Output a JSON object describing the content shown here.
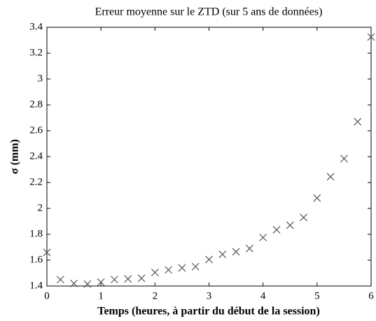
{
  "chart_data": {
    "type": "scatter",
    "title": "Erreur moyenne sur le ZTD (sur 5 ans de données)",
    "xlabel": "Temps (heures, à partir du début de la session)",
    "ylabel": "σ (mm)",
    "x": [
      0,
      0.25,
      0.5,
      0.75,
      1,
      1.25,
      1.5,
      1.75,
      2,
      2.25,
      2.5,
      2.75,
      3,
      3.25,
      3.5,
      3.75,
      4,
      4.25,
      4.5,
      4.75,
      5,
      5.25,
      5.5,
      5.75,
      6
    ],
    "values": [
      1.66,
      1.45,
      1.42,
      1.415,
      1.43,
      1.45,
      1.455,
      1.46,
      1.505,
      1.525,
      1.54,
      1.55,
      1.605,
      1.645,
      1.665,
      1.69,
      1.775,
      1.835,
      1.87,
      1.93,
      2.08,
      2.245,
      2.385,
      2.67,
      3.325
    ],
    "color": "#555555",
    "xlim": [
      0,
      6
    ],
    "xticks": [
      0,
      1,
      2,
      3,
      4,
      5,
      6
    ],
    "ylim": [
      1.4,
      3.4
    ],
    "yticks": [
      1.4,
      1.6,
      1.8,
      2,
      2.2,
      2.4,
      2.6,
      2.8,
      3,
      3.2,
      3.4
    ]
  }
}
